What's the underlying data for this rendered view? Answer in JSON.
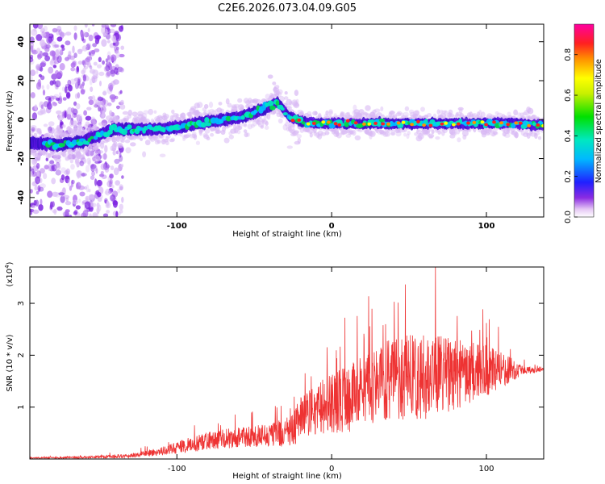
{
  "title": "C2E6.2026.073.04.09.G05",
  "chart_data": [
    {
      "type": "heatmap",
      "title": "C2E6.2026.073.04.09.G05",
      "xlabel": "Height of straight line (km)",
      "ylabel": "Frequency (Hz)",
      "xlim": [
        -195,
        137
      ],
      "ylim": [
        -50,
        49
      ],
      "xticks": [
        -100,
        0,
        100
      ],
      "xtick_labels": [
        "-100",
        "0",
        "100"
      ],
      "yticks": [
        -40,
        -20,
        0,
        20,
        40
      ],
      "ytick_labels": [
        "-40",
        "-20",
        "0",
        "20",
        "40"
      ],
      "ridge": {
        "x": [
          -195,
          -175,
          -160,
          -150,
          -140,
          -120,
          -100,
          -80,
          -60,
          -45,
          -35,
          -28,
          -20,
          -10,
          0,
          10,
          20,
          40,
          60,
          80,
          100,
          120,
          137
        ],
        "frequency": [
          -12,
          -13,
          -11,
          -8,
          -5,
          -5,
          -4,
          -1,
          1,
          5,
          9,
          2,
          -1,
          -2,
          -2,
          -2,
          -2,
          -2,
          -2,
          -2,
          -2,
          -2,
          -3
        ]
      },
      "colorbar": {
        "label": "Normalized spectral amplitude",
        "range": [
          0.0,
          0.95
        ],
        "ticks": [
          0.0,
          0.2,
          0.4,
          0.6,
          0.8
        ],
        "tick_labels": [
          "0.0",
          "0.2",
          "0.4",
          "0.6",
          "0.8"
        ]
      }
    },
    {
      "type": "line",
      "xlabel": "Height of straight line (km)",
      "ylabel": "SNR (10 * v/v)",
      "y_multiplier": "(x10",
      "y_multiplier_exp": "4",
      "y_multiplier_close": ")",
      "xlim": [
        -195,
        137
      ],
      "ylim": [
        0,
        3.7
      ],
      "xticks": [
        -100,
        0,
        100
      ],
      "xtick_labels": [
        "-100",
        "0",
        "100"
      ],
      "yticks": [
        1,
        2,
        3
      ],
      "ytick_labels": [
        "1",
        "2",
        "3"
      ],
      "series": [
        {
          "name": "SNR",
          "color": "#ee3333",
          "envelope_x": [
            -195,
            -160,
            -130,
            -110,
            -100,
            -80,
            -60,
            -40,
            -25,
            -20,
            -10,
            0,
            10,
            20,
            30,
            40,
            60,
            80,
            100,
            115,
            125,
            137
          ],
          "envelope_mean": [
            0.02,
            0.03,
            0.06,
            0.15,
            0.22,
            0.35,
            0.42,
            0.45,
            0.55,
            0.8,
            0.95,
            1.05,
            1.15,
            1.3,
            1.45,
            1.55,
            1.6,
            1.65,
            1.7,
            1.72,
            1.7,
            1.72
          ],
          "envelope_amp": [
            0.01,
            0.02,
            0.04,
            0.08,
            0.12,
            0.18,
            0.2,
            0.22,
            0.3,
            0.45,
            0.5,
            0.6,
            0.65,
            0.7,
            0.75,
            0.8,
            0.85,
            0.7,
            0.5,
            0.25,
            0.08,
            0.03
          ],
          "peak_value": 3.7,
          "peak_x": 67
        }
      ]
    }
  ]
}
